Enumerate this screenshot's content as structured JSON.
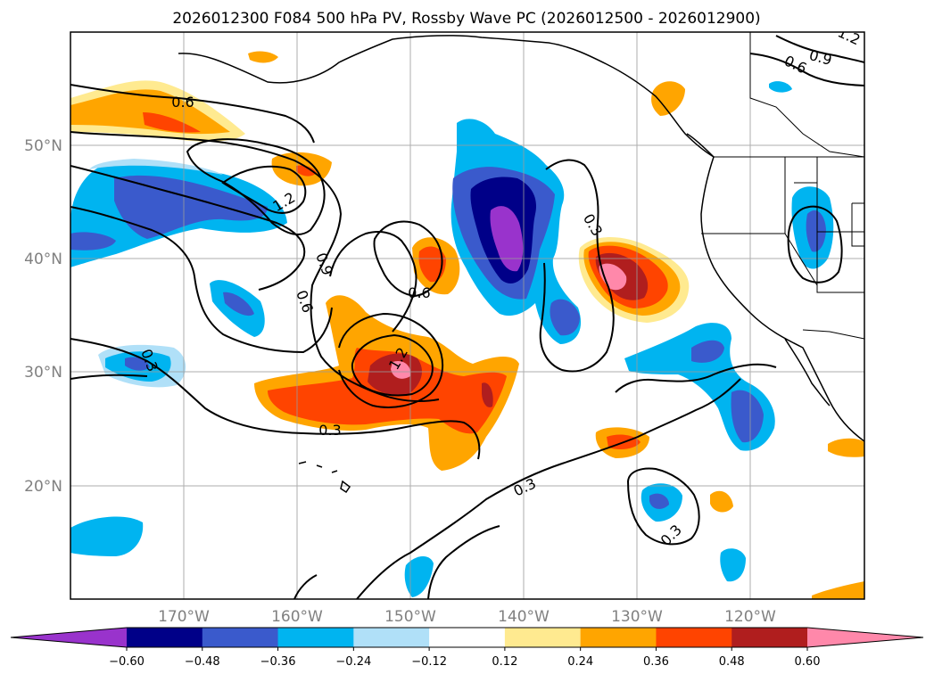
{
  "title": "2026012300 F084 500 hPa PV, Rossby Wave PC (2026012500 - 2026012900)",
  "lat_labels": [
    "50°N",
    "40°N",
    "30°N",
    "20°N"
  ],
  "lon_labels": [
    "170°W",
    "160°W",
    "150°W",
    "140°W",
    "130°W",
    "120°W"
  ],
  "colorbar": {
    "colors": [
      "#9933cc",
      "#000088",
      "#3a5acc",
      "#00b4f0",
      "#b0e0f8",
      "#ffffff",
      "#ffea90",
      "#ffa500",
      "#ff4400",
      "#b01e1e",
      "#ff88aa"
    ],
    "labels": [
      "−0.60",
      "−0.48",
      "−0.36",
      "−0.24",
      "−0.12",
      "0.12",
      "0.24",
      "0.36",
      "0.48",
      "0.60"
    ]
  },
  "contour_labels": [
    "0.6",
    "1.2",
    "0.9",
    "0.6",
    "0.6",
    "0.3",
    "0.3",
    "1.2",
    "0.3",
    "0.3",
    "0.3",
    "0.6",
    "0.9",
    "1.2"
  ],
  "chart_data": {
    "type": "filled-contour map",
    "title": "2026012300 F084 500 hPa PV, Rossby Wave PC (2026012500 - 2026012900)",
    "fill_levels": [
      -0.6,
      -0.48,
      -0.36,
      -0.24,
      -0.12,
      0.12,
      0.24,
      0.36,
      0.48,
      0.6
    ],
    "contour_levels": [
      0.3,
      0.6,
      0.9,
      1.2
    ],
    "lat_range": [
      10,
      60
    ],
    "lon_range": [
      -180,
      -110
    ]
  }
}
